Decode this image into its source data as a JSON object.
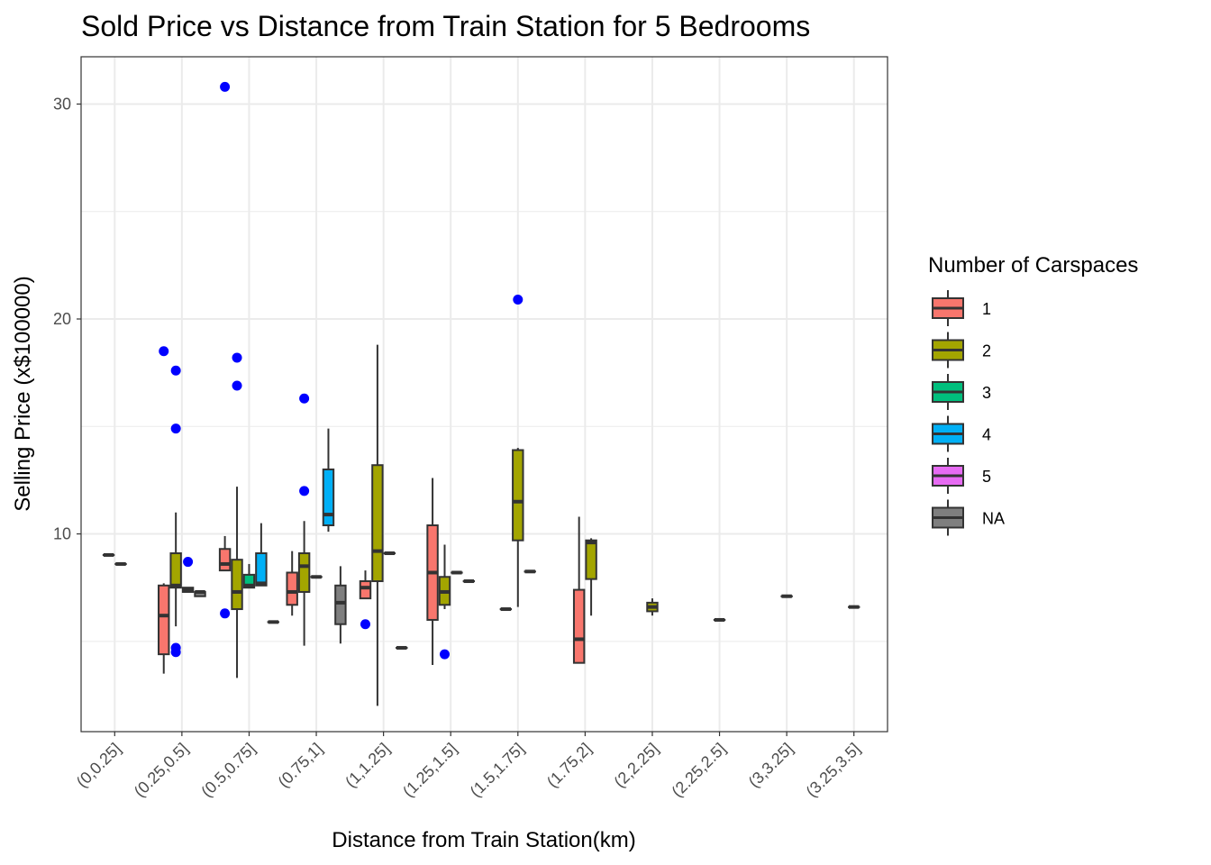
{
  "chart_data": {
    "type": "box",
    "title": "Sold Price vs Distance from Train Station for 5 Bedrooms",
    "xlabel": "Distance from Train Station(km)",
    "ylabel": "Selling Price (x$100000)",
    "ylim": [
      0.8,
      32.2
    ],
    "yticks": [
      10,
      20,
      30
    ],
    "grid": true,
    "legend": {
      "title": "Number of Carspaces",
      "position": "right",
      "entries": [
        {
          "label": "1",
          "color": "#F8766D"
        },
        {
          "label": "2",
          "color": "#A3A500"
        },
        {
          "label": "3",
          "color": "#00BF7D"
        },
        {
          "label": "4",
          "color": "#00B0F6"
        },
        {
          "label": "5",
          "color": "#E76BF3"
        },
        {
          "label": "NA",
          "color": "#7F7F7F"
        }
      ]
    },
    "outlier_color": "#0000FF",
    "categories": [
      "(0,0.25]",
      "(0.25,0.5]",
      "(0.5,0.75]",
      "(0.75,1]",
      "(1,1.25]",
      "(1.25,1.5]",
      "(1.5,1.75]",
      "(1.75,2]",
      "(2,2.25]",
      "(2.25,2.5]",
      "(3,3.25]",
      "(3.25,3.5]"
    ],
    "groups": [
      {
        "category": "(0,0.25]",
        "boxes": [
          {
            "carspaces": "1",
            "min": 9.02,
            "q1": 9.02,
            "median": 9.02,
            "q3": 9.02,
            "max": 9.02,
            "outliers": []
          },
          {
            "carspaces": "2",
            "min": 8.6,
            "q1": 8.6,
            "median": 8.6,
            "q3": 8.6,
            "max": 8.6,
            "outliers": []
          }
        ]
      },
      {
        "category": "(0.25,0.5]",
        "boxes": [
          {
            "carspaces": "1",
            "min": 3.5,
            "q1": 4.4,
            "median": 6.2,
            "q3": 7.6,
            "max": 7.7,
            "outliers": [
              18.5
            ]
          },
          {
            "carspaces": "2",
            "min": 5.7,
            "q1": 7.5,
            "median": 7.6,
            "q3": 9.1,
            "max": 11.0,
            "outliers": [
              17.6,
              14.9,
              4.7,
              4.5
            ]
          },
          {
            "carspaces": "3",
            "min": 7.3,
            "q1": 7.3,
            "median": 7.4,
            "q3": 7.5,
            "max": 7.5,
            "outliers": [
              8.7
            ]
          },
          {
            "carspaces": "NA",
            "min": 7.1,
            "q1": 7.1,
            "median": 7.3,
            "q3": 7.3,
            "max": 7.3,
            "outliers": []
          }
        ]
      },
      {
        "category": "(0.5,0.75]",
        "boxes": [
          {
            "carspaces": "1",
            "min": 8.3,
            "q1": 8.3,
            "median": 8.6,
            "q3": 9.3,
            "max": 9.9,
            "outliers": [
              30.8,
              6.3
            ]
          },
          {
            "carspaces": "2",
            "min": 3.3,
            "q1": 6.5,
            "median": 7.3,
            "q3": 8.8,
            "max": 12.2,
            "outliers": [
              18.2,
              16.9
            ]
          },
          {
            "carspaces": "3",
            "min": 7.5,
            "q1": 7.5,
            "median": 7.6,
            "q3": 8.1,
            "max": 8.6,
            "outliers": []
          },
          {
            "carspaces": "4",
            "min": 7.6,
            "q1": 7.6,
            "median": 7.7,
            "q3": 9.1,
            "max": 10.5,
            "outliers": []
          },
          {
            "carspaces": "NA",
            "min": 5.9,
            "q1": 5.9,
            "median": 5.9,
            "q3": 5.9,
            "max": 5.9,
            "outliers": []
          }
        ]
      },
      {
        "category": "(0.75,1]",
        "boxes": [
          {
            "carspaces": "1",
            "min": 6.2,
            "q1": 6.7,
            "median": 7.3,
            "q3": 8.2,
            "max": 9.2,
            "outliers": []
          },
          {
            "carspaces": "2",
            "min": 4.8,
            "q1": 7.3,
            "median": 8.5,
            "q3": 9.1,
            "max": 10.6,
            "outliers": [
              16.3,
              12.0
            ]
          },
          {
            "carspaces": "3",
            "min": 8.0,
            "q1": 8.0,
            "median": 8.0,
            "q3": 8.0,
            "max": 8.0,
            "outliers": []
          },
          {
            "carspaces": "4",
            "min": 10.1,
            "q1": 10.4,
            "median": 10.9,
            "q3": 13.0,
            "max": 14.9,
            "outliers": []
          },
          {
            "carspaces": "NA",
            "min": 4.9,
            "q1": 5.8,
            "median": 6.8,
            "q3": 7.6,
            "max": 8.5,
            "outliers": []
          }
        ]
      },
      {
        "category": "(1,1.25]",
        "boxes": [
          {
            "carspaces": "1",
            "min": 7.0,
            "q1": 7.0,
            "median": 7.5,
            "q3": 7.8,
            "max": 8.3,
            "outliers": [
              5.8
            ]
          },
          {
            "carspaces": "2",
            "min": 2.0,
            "q1": 7.8,
            "median": 9.2,
            "q3": 13.2,
            "max": 18.8,
            "outliers": []
          },
          {
            "carspaces": "3",
            "min": 9.1,
            "q1": 9.1,
            "median": 9.1,
            "q3": 9.1,
            "max": 9.1,
            "outliers": []
          },
          {
            "carspaces": "NA",
            "min": 4.7,
            "q1": 4.7,
            "median": 4.7,
            "q3": 4.7,
            "max": 4.7,
            "outliers": []
          }
        ]
      },
      {
        "category": "(1.25,1.5]",
        "boxes": [
          {
            "carspaces": "1",
            "min": 3.9,
            "q1": 6.0,
            "median": 8.2,
            "q3": 10.4,
            "max": 12.6,
            "outliers": []
          },
          {
            "carspaces": "2",
            "min": 6.5,
            "q1": 6.7,
            "median": 7.3,
            "q3": 8.0,
            "max": 9.5,
            "outliers": [
              4.4
            ]
          },
          {
            "carspaces": "3",
            "min": 8.2,
            "q1": 8.2,
            "median": 8.2,
            "q3": 8.2,
            "max": 8.2,
            "outliers": []
          },
          {
            "carspaces": "NA",
            "min": 7.8,
            "q1": 7.8,
            "median": 7.8,
            "q3": 7.8,
            "max": 7.8,
            "outliers": []
          }
        ]
      },
      {
        "category": "(1.5,1.75]",
        "boxes": [
          {
            "carspaces": "1",
            "min": 6.5,
            "q1": 6.5,
            "median": 6.5,
            "q3": 6.5,
            "max": 6.5,
            "outliers": []
          },
          {
            "carspaces": "2",
            "min": 6.6,
            "q1": 9.7,
            "median": 11.5,
            "q3": 13.9,
            "max": 14.0,
            "outliers": [
              20.9
            ]
          },
          {
            "carspaces": "3",
            "min": 8.25,
            "q1": 8.25,
            "median": 8.25,
            "q3": 8.25,
            "max": 8.25,
            "outliers": []
          }
        ]
      },
      {
        "category": "(1.75,2]",
        "boxes": [
          {
            "carspaces": "1",
            "min": 4.0,
            "q1": 4.0,
            "median": 5.1,
            "q3": 7.4,
            "max": 10.8,
            "outliers": []
          },
          {
            "carspaces": "2",
            "min": 6.2,
            "q1": 7.9,
            "median": 9.6,
            "q3": 9.7,
            "max": 9.8,
            "outliers": []
          }
        ]
      },
      {
        "category": "(2,2.25]",
        "boxes": [
          {
            "carspaces": "2",
            "min": 6.2,
            "q1": 6.4,
            "median": 6.6,
            "q3": 6.8,
            "max": 7.0,
            "outliers": []
          }
        ]
      },
      {
        "category": "(2.25,2.5]",
        "boxes": [
          {
            "carspaces": "2",
            "min": 6.0,
            "q1": 6.0,
            "median": 6.0,
            "q3": 6.0,
            "max": 6.0,
            "outliers": []
          }
        ]
      },
      {
        "category": "(3,3.25]",
        "boxes": [
          {
            "carspaces": "2",
            "min": 7.1,
            "q1": 7.1,
            "median": 7.1,
            "q3": 7.1,
            "max": 7.1,
            "outliers": []
          }
        ]
      },
      {
        "category": "(3.25,3.5]",
        "boxes": [
          {
            "carspaces": "2",
            "min": 6.6,
            "q1": 6.6,
            "median": 6.6,
            "q3": 6.6,
            "max": 6.6,
            "outliers": []
          }
        ]
      }
    ]
  }
}
